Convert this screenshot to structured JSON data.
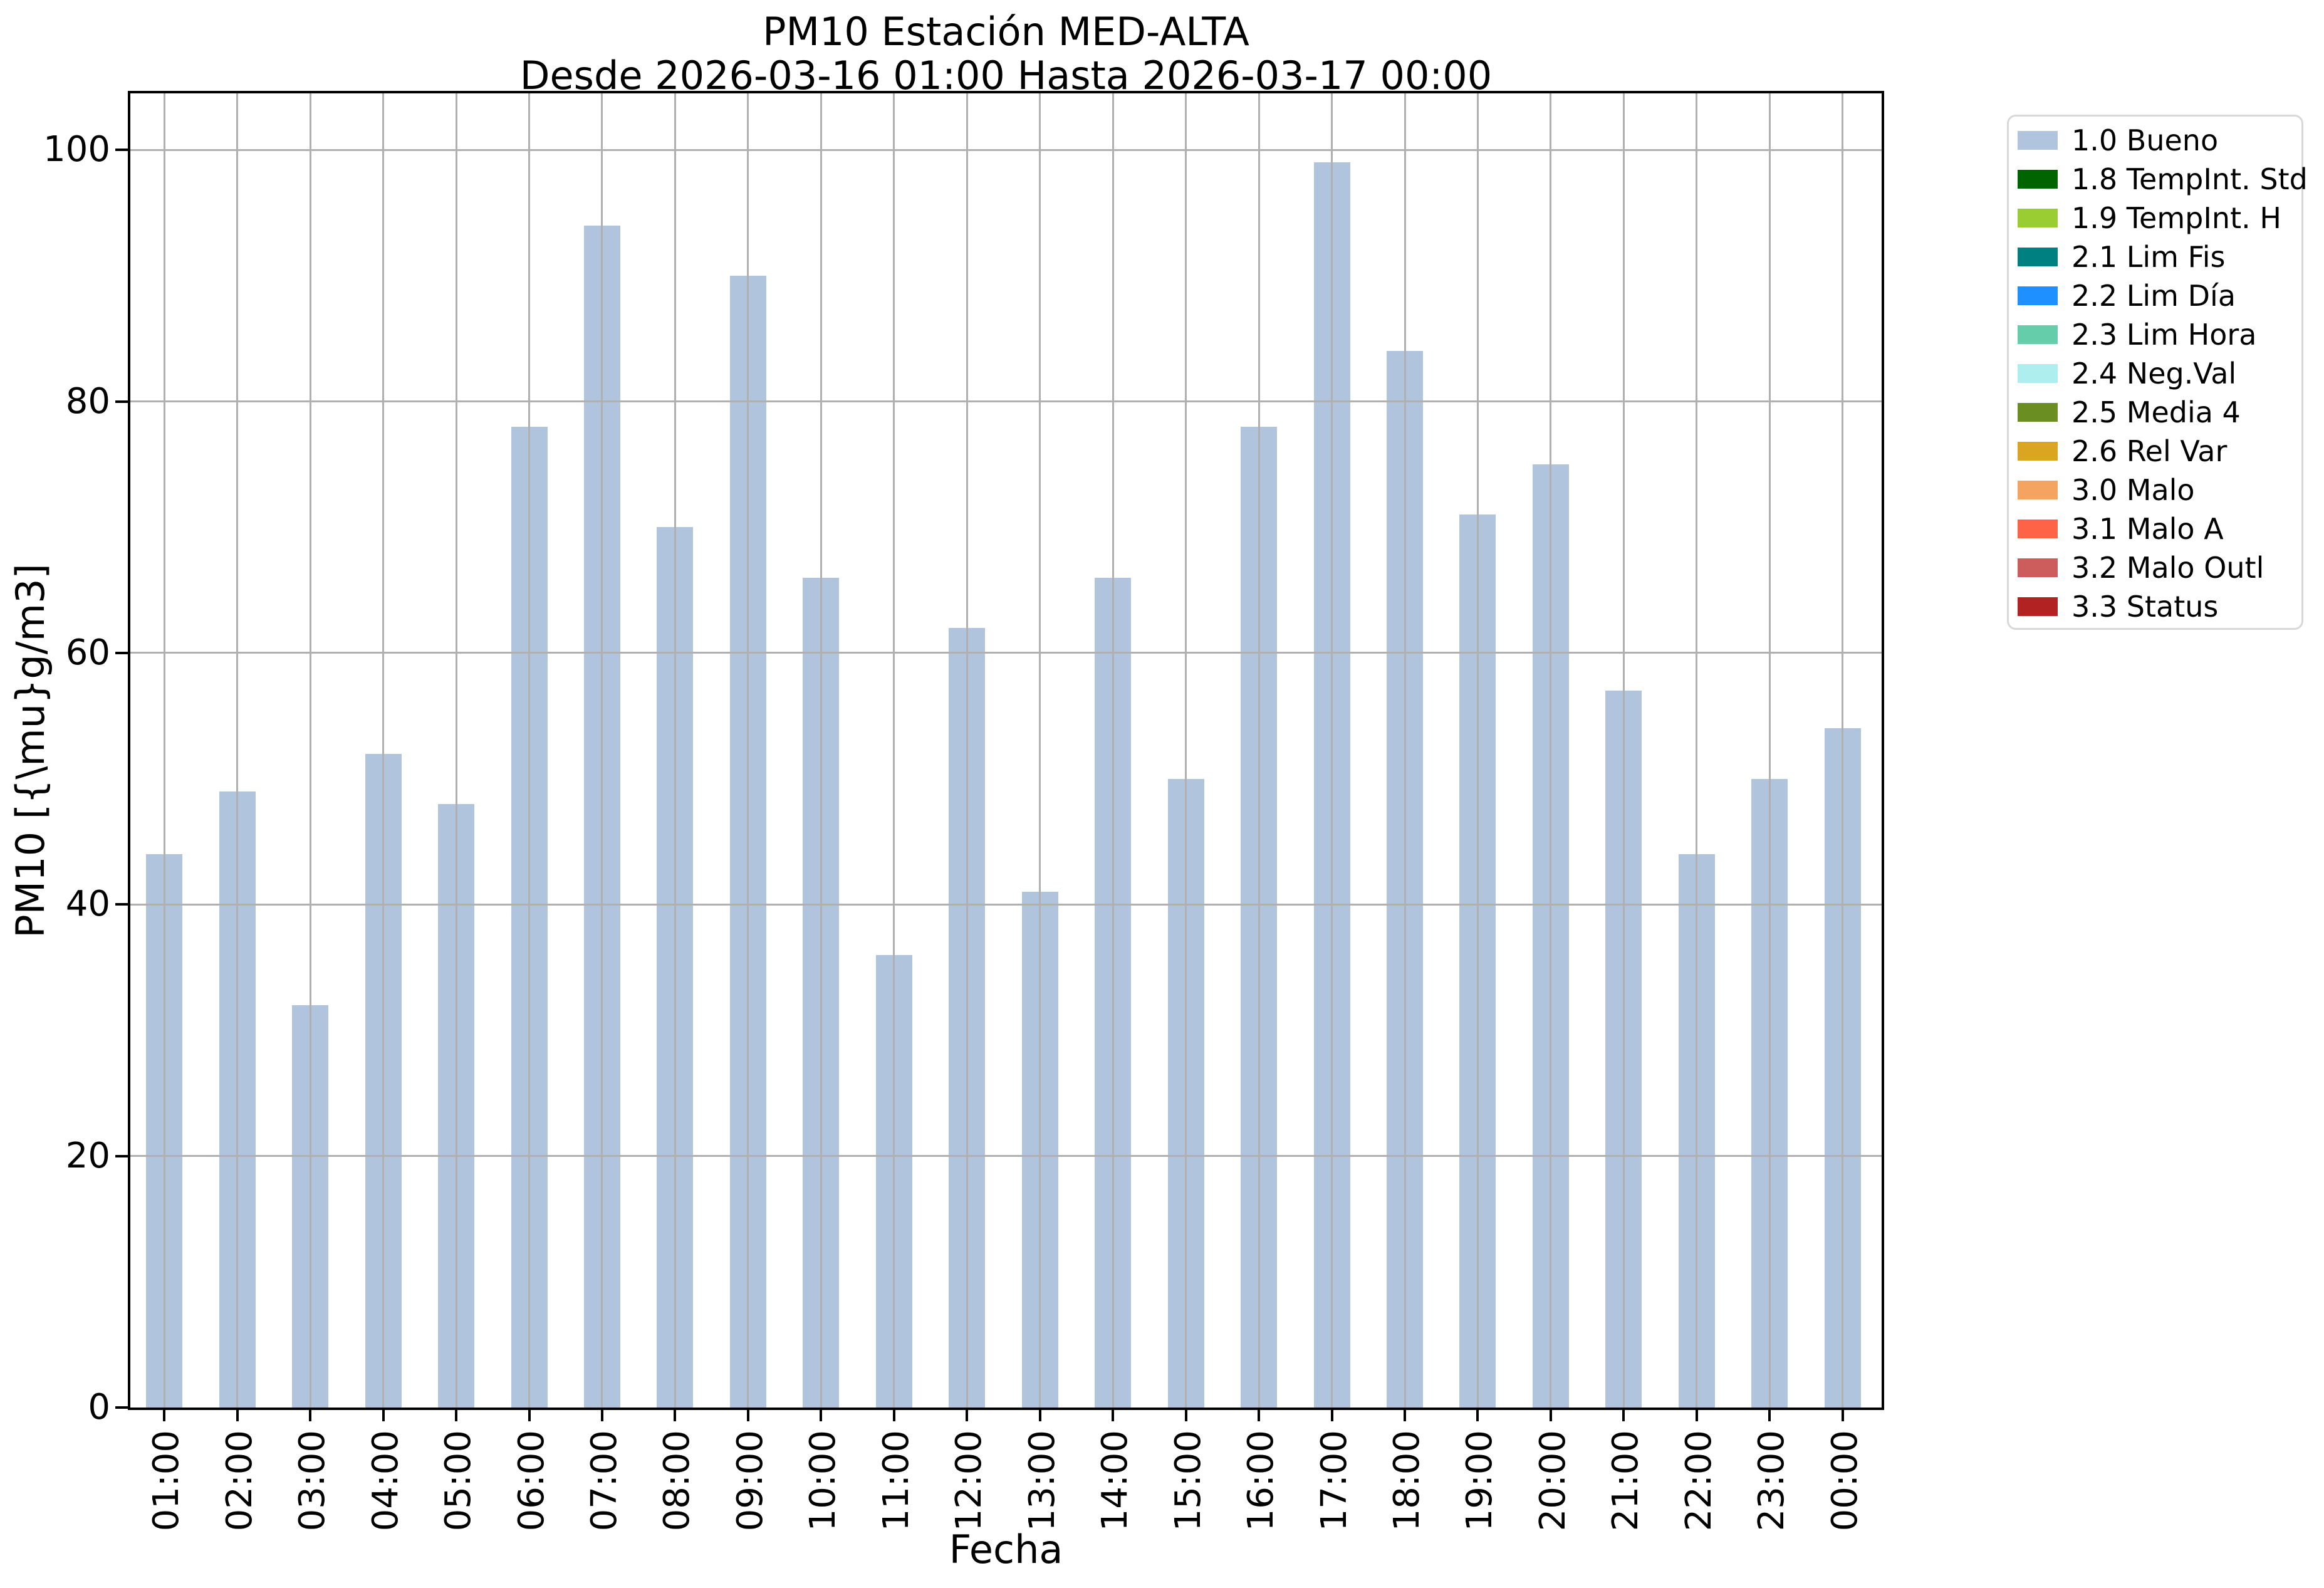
{
  "figure": {
    "title": "PM10 Estación MED-ALTA",
    "subtitle": "Desde 2026-03-16 01:00 Hasta 2026-03-17 00:00"
  },
  "chart_data": {
    "type": "bar",
    "title": "PM10 Estación MED-ALTA",
    "subtitle": "Desde 2026-03-16 01:00 Hasta 2026-03-17 00:00",
    "xlabel": "Fecha",
    "ylabel": "PM10 [{\\mu}g/m3]",
    "categories": [
      "01:00",
      "02:00",
      "03:00",
      "04:00",
      "05:00",
      "06:00",
      "07:00",
      "08:00",
      "09:00",
      "10:00",
      "11:00",
      "12:00",
      "13:00",
      "14:00",
      "15:00",
      "16:00",
      "17:00",
      "18:00",
      "19:00",
      "20:00",
      "21:00",
      "22:00",
      "23:00",
      "00:00"
    ],
    "values": [
      44,
      49,
      32,
      52,
      48,
      78,
      94,
      70,
      90,
      66,
      36,
      62,
      41,
      66,
      50,
      78,
      99,
      84,
      71,
      75,
      57,
      44,
      50,
      54
    ],
    "ylim": [
      0,
      104.5
    ],
    "yticks": [
      0,
      20,
      40,
      60,
      80,
      100
    ],
    "grid": true,
    "grid_color": "#b0b0b0",
    "bar_color": "#b0c4de",
    "legend_position": "outside upper right"
  },
  "legend": {
    "items": [
      {
        "label": "1.0 Bueno",
        "color": "#b0c4de"
      },
      {
        "label": "1.8 TempInt. Std",
        "color": "#006400"
      },
      {
        "label": "1.9 TempInt. H",
        "color": "#9acd32"
      },
      {
        "label": "2.1 Lim Fis",
        "color": "#008080"
      },
      {
        "label": "2.2 Lim Día",
        "color": "#1e90ff"
      },
      {
        "label": "2.3 Lim Hora",
        "color": "#66cdaa"
      },
      {
        "label": "2.4 Neg.Val",
        "color": "#afeeee"
      },
      {
        "label": "2.5 Media 4",
        "color": "#6b8e23"
      },
      {
        "label": "2.6 Rel Var",
        "color": "#daa520"
      },
      {
        "label": "3.0 Malo",
        "color": "#f4a460"
      },
      {
        "label": "3.1 Malo A",
        "color": "#ff6347"
      },
      {
        "label": "3.2 Malo Outl",
        "color": "#cd5c5c"
      },
      {
        "label": "3.3 Status",
        "color": "#b22222"
      }
    ]
  }
}
